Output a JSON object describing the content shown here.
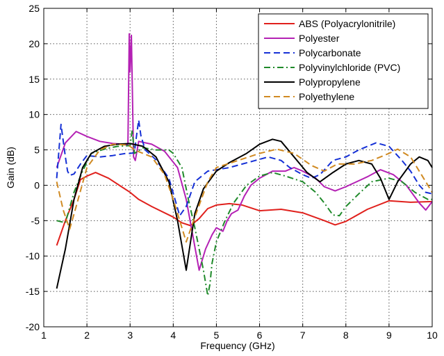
{
  "chart_data": {
    "type": "line",
    "title": "",
    "xlabel": "Frequency (GHz)",
    "ylabel": "Gain (dB)",
    "xlim": [
      1,
      10
    ],
    "ylim": [
      -20,
      25
    ],
    "xticks": [
      "1",
      "2",
      "3",
      "4",
      "5",
      "6",
      "7",
      "8",
      "9",
      "10"
    ],
    "yticks": [
      "-20",
      "-15",
      "-10",
      "-5",
      "0",
      "5",
      "10",
      "15",
      "20",
      "25"
    ],
    "grid": true,
    "grid_style": "dotted",
    "legend_position": "top-right",
    "series": [
      {
        "name": "ABS (Polyacrylonitrile)",
        "color": "#e0201c",
        "dash": "solid",
        "points": [
          [
            1.3,
            -8.5
          ],
          [
            1.5,
            -5
          ],
          [
            1.7,
            -2
          ],
          [
            1.85,
            0.8
          ],
          [
            2.0,
            1.3
          ],
          [
            2.2,
            1.8
          ],
          [
            2.5,
            1.0
          ],
          [
            2.8,
            -0.2
          ],
          [
            3.0,
            -1.0
          ],
          [
            3.2,
            -2.0
          ],
          [
            3.5,
            -3.0
          ],
          [
            4.0,
            -4.5
          ],
          [
            4.2,
            -5.3
          ],
          [
            4.4,
            -5.7
          ],
          [
            4.6,
            -4.7
          ],
          [
            4.8,
            -3.3
          ],
          [
            5.0,
            -2.8
          ],
          [
            5.3,
            -2.6
          ],
          [
            5.6,
            -2.8
          ],
          [
            6.0,
            -3.6
          ],
          [
            6.5,
            -3.4
          ],
          [
            7.0,
            -3.9
          ],
          [
            7.5,
            -5.0
          ],
          [
            7.75,
            -5.6
          ],
          [
            8.0,
            -5.1
          ],
          [
            8.5,
            -3.4
          ],
          [
            9.0,
            -2.2
          ],
          [
            9.5,
            -2.4
          ],
          [
            10.0,
            -2.3
          ]
        ]
      },
      {
        "name": "Polyester",
        "color": "#b421b4",
        "dash": "solid",
        "points": [
          [
            1.3,
            2.5
          ],
          [
            1.5,
            6.0
          ],
          [
            1.75,
            7.6
          ],
          [
            2.0,
            6.9
          ],
          [
            2.3,
            6.2
          ],
          [
            2.6,
            5.9
          ],
          [
            2.85,
            5.8
          ],
          [
            2.95,
            5.7
          ],
          [
            2.98,
            21.4
          ],
          [
            3.0,
            16.0
          ],
          [
            3.03,
            21.2
          ],
          [
            3.08,
            4.0
          ],
          [
            3.12,
            3.5
          ],
          [
            3.2,
            6.2
          ],
          [
            3.5,
            5.8
          ],
          [
            3.8,
            4.8
          ],
          [
            4.1,
            2.5
          ],
          [
            4.3,
            -2.0
          ],
          [
            4.45,
            -7.0
          ],
          [
            4.6,
            -12.0
          ],
          [
            4.75,
            -9.0
          ],
          [
            4.9,
            -7.0
          ],
          [
            5.0,
            -6.0
          ],
          [
            5.15,
            -6.5
          ],
          [
            5.25,
            -5.0
          ],
          [
            5.35,
            -4.0
          ],
          [
            5.5,
            -3.5
          ],
          [
            5.65,
            -1.5
          ],
          [
            5.8,
            0.0
          ],
          [
            6.0,
            1.0
          ],
          [
            6.3,
            2.0
          ],
          [
            6.6,
            2.0
          ],
          [
            6.8,
            2.5
          ],
          [
            7.0,
            2.0
          ],
          [
            7.3,
            1.0
          ],
          [
            7.5,
            -0.2
          ],
          [
            7.75,
            -0.8
          ],
          [
            8.0,
            -0.2
          ],
          [
            8.5,
            1.2
          ],
          [
            8.8,
            2.2
          ],
          [
            9.1,
            1.5
          ],
          [
            9.4,
            0.0
          ],
          [
            9.7,
            -2.5
          ],
          [
            9.85,
            -3.5
          ],
          [
            10.0,
            -2.3
          ]
        ]
      },
      {
        "name": "Polycarbonate",
        "color": "#1530d6",
        "dash": "dashed",
        "points": [
          [
            1.3,
            1.0
          ],
          [
            1.4,
            8.6
          ],
          [
            1.5,
            4.0
          ],
          [
            1.55,
            2.0
          ],
          [
            1.6,
            1.4
          ],
          [
            1.7,
            1.6
          ],
          [
            1.85,
            3.0
          ],
          [
            2.0,
            4.2
          ],
          [
            2.3,
            4.0
          ],
          [
            2.6,
            4.2
          ],
          [
            2.9,
            4.5
          ],
          [
            3.0,
            4.5
          ],
          [
            3.1,
            4.6
          ],
          [
            3.15,
            7.0
          ],
          [
            3.2,
            9.2
          ],
          [
            3.25,
            7.0
          ],
          [
            3.35,
            5.0
          ],
          [
            3.6,
            3.6
          ],
          [
            3.9,
            1.0
          ],
          [
            4.15,
            -4.3
          ],
          [
            4.3,
            -3.0
          ],
          [
            4.5,
            0.5
          ],
          [
            4.8,
            2.0
          ],
          [
            5.0,
            2.2
          ],
          [
            5.3,
            2.5
          ],
          [
            5.6,
            3.0
          ],
          [
            5.9,
            3.5
          ],
          [
            6.2,
            4.0
          ],
          [
            6.5,
            3.5
          ],
          [
            6.7,
            2.5
          ],
          [
            7.0,
            1.5
          ],
          [
            7.2,
            1.0
          ],
          [
            7.4,
            1.5
          ],
          [
            7.7,
            3.5
          ],
          [
            8.0,
            4.0
          ],
          [
            8.3,
            5.0
          ],
          [
            8.7,
            6.0
          ],
          [
            9.0,
            5.5
          ],
          [
            9.3,
            3.5
          ],
          [
            9.5,
            2.0
          ],
          [
            9.7,
            0.0
          ],
          [
            9.85,
            -1.0
          ],
          [
            10.0,
            -1.2
          ]
        ]
      },
      {
        "name": "Polyvinylchloride (PVC)",
        "color": "#1f8a2a",
        "dash": "dashdot",
        "points": [
          [
            1.3,
            -5.0
          ],
          [
            1.5,
            -5.3
          ],
          [
            1.7,
            -1.0
          ],
          [
            1.9,
            2.0
          ],
          [
            2.1,
            4.5
          ],
          [
            2.4,
            5.1
          ],
          [
            2.7,
            5.5
          ],
          [
            3.0,
            5.6
          ],
          [
            3.05,
            7.8
          ],
          [
            3.1,
            4.5
          ],
          [
            3.3,
            5.3
          ],
          [
            3.6,
            5.0
          ],
          [
            3.9,
            5.0
          ],
          [
            4.0,
            4.5
          ],
          [
            4.2,
            2.5
          ],
          [
            4.35,
            -2.0
          ],
          [
            4.5,
            -6.0
          ],
          [
            4.6,
            -9.0
          ],
          [
            4.7,
            -12.0
          ],
          [
            4.8,
            -15.6
          ],
          [
            4.85,
            -14.0
          ],
          [
            4.9,
            -11.0
          ],
          [
            5.0,
            -8.0
          ],
          [
            5.2,
            -5.0
          ],
          [
            5.4,
            -2.5
          ],
          [
            5.7,
            0.0
          ],
          [
            6.0,
            1.3
          ],
          [
            6.3,
            1.8
          ],
          [
            6.6,
            1.3
          ],
          [
            7.0,
            0.5
          ],
          [
            7.3,
            -1.0
          ],
          [
            7.5,
            -2.5
          ],
          [
            7.7,
            -4.2
          ],
          [
            7.85,
            -4.3
          ],
          [
            8.0,
            -3.0
          ],
          [
            8.3,
            -1.2
          ],
          [
            8.6,
            0.5
          ],
          [
            9.0,
            1.0
          ],
          [
            9.3,
            0.5
          ],
          [
            9.6,
            -1.0
          ],
          [
            9.9,
            -2.0
          ],
          [
            10.0,
            -2.0
          ]
        ]
      },
      {
        "name": "Polypropylene",
        "color": "#000000",
        "dash": "solid",
        "points": [
          [
            1.3,
            -14.6
          ],
          [
            1.5,
            -9.0
          ],
          [
            1.7,
            -2.0
          ],
          [
            1.9,
            2.5
          ],
          [
            2.1,
            4.5
          ],
          [
            2.4,
            5.5
          ],
          [
            2.7,
            5.8
          ],
          [
            3.0,
            5.9
          ],
          [
            3.3,
            5.5
          ],
          [
            3.6,
            4.0
          ],
          [
            3.9,
            0.5
          ],
          [
            4.1,
            -5.0
          ],
          [
            4.3,
            -12.0
          ],
          [
            4.4,
            -8.0
          ],
          [
            4.5,
            -4.0
          ],
          [
            4.7,
            -0.5
          ],
          [
            5.0,
            2.0
          ],
          [
            5.3,
            3.2
          ],
          [
            5.7,
            4.5
          ],
          [
            6.0,
            5.8
          ],
          [
            6.3,
            6.5
          ],
          [
            6.5,
            6.2
          ],
          [
            6.8,
            4.0
          ],
          [
            7.1,
            1.8
          ],
          [
            7.4,
            0.5
          ],
          [
            7.7,
            1.8
          ],
          [
            8.0,
            3.0
          ],
          [
            8.3,
            3.5
          ],
          [
            8.6,
            3.0
          ],
          [
            8.8,
            1.0
          ],
          [
            9.0,
            -2.0
          ],
          [
            9.2,
            0.5
          ],
          [
            9.5,
            3.0
          ],
          [
            9.7,
            4.0
          ],
          [
            9.9,
            3.5
          ],
          [
            10.0,
            2.5
          ]
        ]
      },
      {
        "name": "Polyethylene",
        "color": "#d08a22",
        "dash": "dashed",
        "points": [
          [
            1.3,
            0.5
          ],
          [
            1.45,
            -3.5
          ],
          [
            1.6,
            -6.2
          ],
          [
            1.75,
            -3.0
          ],
          [
            2.0,
            2.5
          ],
          [
            2.3,
            5.0
          ],
          [
            2.6,
            5.8
          ],
          [
            2.9,
            5.7
          ],
          [
            3.0,
            5.5
          ],
          [
            3.1,
            5.0
          ],
          [
            3.5,
            4.0
          ],
          [
            3.8,
            1.5
          ],
          [
            4.0,
            -2.0
          ],
          [
            4.3,
            -8.0
          ],
          [
            4.5,
            -4.5
          ],
          [
            4.8,
            0.5
          ],
          [
            5.0,
            2.5
          ],
          [
            5.5,
            3.5
          ],
          [
            6.0,
            4.5
          ],
          [
            6.4,
            5.1
          ],
          [
            6.8,
            4.5
          ],
          [
            7.2,
            2.8
          ],
          [
            7.5,
            2.0
          ],
          [
            7.8,
            3.0
          ],
          [
            8.2,
            3.0
          ],
          [
            8.6,
            3.5
          ],
          [
            9.0,
            4.5
          ],
          [
            9.2,
            5.1
          ],
          [
            9.5,
            4.0
          ],
          [
            9.8,
            1.0
          ],
          [
            10.0,
            -1.0
          ]
        ]
      }
    ]
  }
}
